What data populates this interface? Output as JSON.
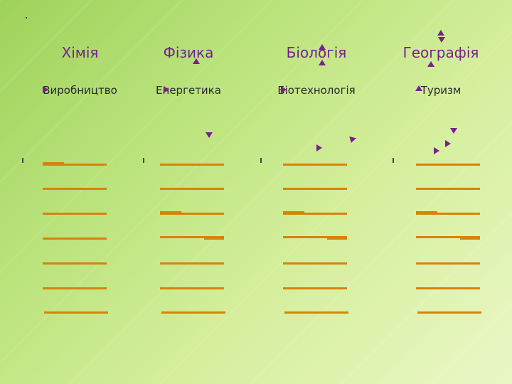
{
  "columns": [
    {
      "title": "Хімія",
      "subtitle": "Виробництво"
    },
    {
      "title": "Фізика",
      "subtitle": "Енергетика"
    },
    {
      "title": "Біологія",
      "subtitle": "Біотехнологія"
    },
    {
      "title": "Географія",
      "subtitle": "Туризм"
    }
  ],
  "colors": {
    "background": "#b8e27a",
    "title": "#7a1f8f",
    "line": "#d8820c",
    "arrow": "#7a1f8f"
  }
}
